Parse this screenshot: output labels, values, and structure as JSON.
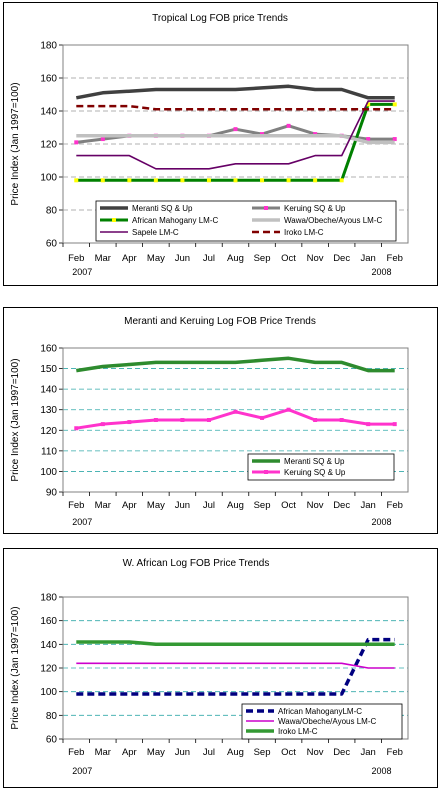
{
  "months": [
    "Feb",
    "Mar",
    "Apr",
    "May",
    "Jun",
    "Jul",
    "Aug",
    "Sep",
    "Oct",
    "Nov",
    "Dec",
    "Jan",
    "Feb"
  ],
  "year_labels": {
    "start": "2007",
    "end": "2008"
  },
  "ylabel": "Price Index (Jan 1997=100)",
  "chart_data": [
    {
      "type": "line",
      "title": "Tropical Log FOB price Trends",
      "ylabel": "Price Index (Jan 1997=100)",
      "ylim": [
        60,
        180
      ],
      "yticks": [
        60,
        80,
        100,
        120,
        140,
        160,
        180
      ],
      "grid": "horizontal dashed",
      "legend": "bottom, inside plot, two columns",
      "categories": [
        "Feb",
        "Mar",
        "Apr",
        "May",
        "Jun",
        "Jul",
        "Aug",
        "Sep",
        "Oct",
        "Nov",
        "Dec",
        "Jan",
        "Feb"
      ],
      "series": [
        {
          "name": "Meranti SQ & Up",
          "color": "#404040",
          "style": "solid-thick",
          "values": [
            148,
            151,
            152,
            153,
            153,
            153,
            153,
            154,
            155,
            153,
            153,
            148,
            148
          ]
        },
        {
          "name": "Keruing SQ & Up",
          "color": "#808080",
          "style": "solid-markers",
          "marker": "#ff33cc",
          "values": [
            121,
            123,
            125,
            125,
            125,
            125,
            129,
            126,
            131,
            126,
            125,
            123,
            123
          ]
        },
        {
          "name": "African Mahogany LM-C",
          "color": "#008000",
          "style": "solid-markers",
          "marker": "#ffff00",
          "values": [
            98,
            98,
            98,
            98,
            98,
            98,
            98,
            98,
            98,
            98,
            98,
            144,
            144
          ]
        },
        {
          "name": "Wawa/Obeche/Ayous LM-C",
          "color": "#c0c0c0",
          "style": "solid-thick",
          "values": [
            125,
            125,
            125,
            125,
            125,
            125,
            125,
            125,
            125,
            125,
            125,
            121,
            121
          ]
        },
        {
          "name": "Sapele LM-C",
          "color": "#660066",
          "style": "solid",
          "values": [
            113,
            113,
            113,
            105,
            105,
            105,
            108,
            108,
            108,
            113,
            113,
            146,
            146
          ]
        },
        {
          "name": "Iroko LM-C",
          "color": "#800000",
          "style": "dashed",
          "values": [
            143,
            143,
            143,
            141,
            141,
            141,
            141,
            141,
            141,
            141,
            141,
            141,
            141
          ]
        }
      ]
    },
    {
      "type": "line",
      "title": "Meranti and Keruing Log FOB Price Trends",
      "ylabel": "Price Index (Jan 1997=100)",
      "ylim": [
        90,
        160
      ],
      "yticks": [
        90,
        100,
        110,
        120,
        130,
        140,
        150,
        160
      ],
      "grid": "horizontal dashed",
      "legend": "bottom-right",
      "categories": [
        "Feb",
        "Mar",
        "Apr",
        "May",
        "Jun",
        "Jul",
        "Aug",
        "Sep",
        "Oct",
        "Nov",
        "Dec",
        "Jan",
        "Feb"
      ],
      "series": [
        {
          "name": "Meranti SQ & Up",
          "color": "#2e8b2e",
          "style": "solid-thick",
          "values": [
            149,
            151,
            152,
            153,
            153,
            153,
            153,
            154,
            155,
            153,
            153,
            149,
            149
          ]
        },
        {
          "name": "Keruing SQ & Up",
          "color": "#ff33cc",
          "style": "solid-markers",
          "marker": "#ff33cc",
          "values": [
            121,
            123,
            124,
            125,
            125,
            125,
            129,
            126,
            130,
            125,
            125,
            123,
            123
          ]
        }
      ]
    },
    {
      "type": "line",
      "title": "W. African Log FOB Price Trends",
      "ylabel": "Price Index (Jan 1997=100)",
      "ylim": [
        60,
        180
      ],
      "yticks": [
        60,
        80,
        100,
        120,
        140,
        160,
        180
      ],
      "grid": "horizontal dashed",
      "legend": "bottom-right",
      "categories": [
        "Feb",
        "Mar",
        "Apr",
        "May",
        "Jun",
        "Jul",
        "Aug",
        "Sep",
        "Oct",
        "Nov",
        "Dec",
        "Jan",
        "Feb"
      ],
      "series": [
        {
          "name": "African MahoganyLM-C",
          "color": "#000080",
          "style": "dashed-thick",
          "values": [
            98,
            98,
            98,
            98,
            98,
            98,
            98,
            98,
            98,
            98,
            98,
            144,
            144
          ]
        },
        {
          "name": "Wawa/Obeche/Ayous LM-C",
          "color": "#cc00cc",
          "style": "solid",
          "values": [
            124,
            124,
            124,
            124,
            124,
            124,
            124,
            124,
            124,
            124,
            124,
            120,
            120
          ]
        },
        {
          "name": "Iroko LM-C",
          "color": "#339933",
          "style": "solid-thick",
          "values": [
            142,
            142,
            142,
            140,
            140,
            140,
            140,
            140,
            140,
            140,
            140,
            140,
            140
          ]
        }
      ]
    }
  ]
}
